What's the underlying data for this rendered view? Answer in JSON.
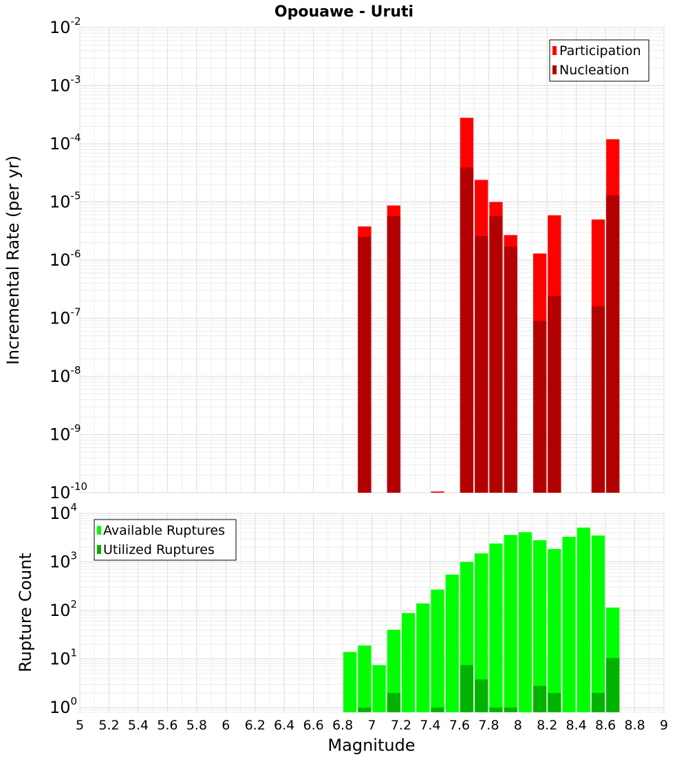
{
  "chart_data": {
    "title": "Opouawe - Uruti",
    "xlabel": "Magnitude",
    "x_ticks": [
      "5",
      "5.2",
      "5.4",
      "5.6",
      "5.8",
      "6",
      "6.2",
      "6.4",
      "6.6",
      "6.8",
      "7",
      "7.2",
      "7.4",
      "7.6",
      "7.8",
      "8",
      "8.2",
      "8.4",
      "8.6",
      "8.8",
      "9"
    ],
    "xlim": [
      5,
      9
    ],
    "charts": [
      {
        "type": "bar",
        "ylabel": "Incremental Rate (per yr)",
        "yscale": "log",
        "ylim": [
          1e-10,
          0.01
        ],
        "y_tick_exponents": [
          "-10",
          "-9",
          "-8",
          "-7",
          "-6",
          "-5",
          "-4",
          "-3",
          "-2"
        ],
        "legend_position": "top-right",
        "grid": true,
        "bin_width": 0.1,
        "series": [
          {
            "name": "Participation",
            "color": "#ff0000",
            "points": [
              [
                6.95,
                3.8e-06
              ],
              [
                7.15,
                8.7e-06
              ],
              [
                7.45,
                1.05e-10
              ],
              [
                7.65,
                0.00028
              ],
              [
                7.75,
                2.4e-05
              ],
              [
                7.85,
                1e-05
              ],
              [
                7.95,
                2.7e-06
              ],
              [
                8.15,
                1.3e-06
              ],
              [
                8.25,
                5.9e-06
              ],
              [
                8.55,
                5e-06
              ],
              [
                8.65,
                0.00012
              ]
            ]
          },
          {
            "name": "Nucleation",
            "color": "#b30000",
            "points": [
              [
                6.95,
                2.5e-06
              ],
              [
                7.15,
                5.7e-06
              ],
              [
                7.65,
                3.9e-05
              ],
              [
                7.75,
                2.6e-06
              ],
              [
                7.85,
                5.7e-06
              ],
              [
                7.95,
                1.7e-06
              ],
              [
                8.15,
                9e-08
              ],
              [
                8.25,
                2.4e-07
              ],
              [
                8.55,
                1.6e-07
              ],
              [
                8.65,
                1.3e-05
              ]
            ]
          }
        ]
      },
      {
        "type": "bar",
        "ylabel": "Rupture Count",
        "yscale": "log",
        "ylim": [
          0.8,
          10000
        ],
        "y_tick_exponents": [
          "0",
          "1",
          "2",
          "3",
          "4"
        ],
        "legend_position": "top-left",
        "grid": true,
        "bin_width": 0.1,
        "series": [
          {
            "name": "Available Ruptures",
            "color": "#00ff00",
            "points": [
              [
                6.85,
                14
              ],
              [
                6.95,
                19
              ],
              [
                7.05,
                7.5
              ],
              [
                7.15,
                40
              ],
              [
                7.25,
                88
              ],
              [
                7.35,
                140
              ],
              [
                7.45,
                270
              ],
              [
                7.55,
                550
              ],
              [
                7.65,
                1000
              ],
              [
                7.75,
                1500
              ],
              [
                7.85,
                2400
              ],
              [
                7.95,
                3600
              ],
              [
                8.05,
                4100
              ],
              [
                8.15,
                2800
              ],
              [
                8.25,
                1850
              ],
              [
                8.35,
                3300
              ],
              [
                8.45,
                5100
              ],
              [
                8.55,
                3500
              ],
              [
                8.65,
                115
              ]
            ]
          },
          {
            "name": "Utilized Ruptures",
            "color": "#00b300",
            "points": [
              [
                6.95,
                1
              ],
              [
                7.15,
                2
              ],
              [
                7.45,
                1
              ],
              [
                7.65,
                7.5
              ],
              [
                7.75,
                3.8
              ],
              [
                7.85,
                1
              ],
              [
                7.95,
                1
              ],
              [
                8.15,
                2.8
              ],
              [
                8.25,
                2
              ],
              [
                8.55,
                2
              ],
              [
                8.65,
                10.5
              ]
            ]
          }
        ]
      }
    ]
  }
}
